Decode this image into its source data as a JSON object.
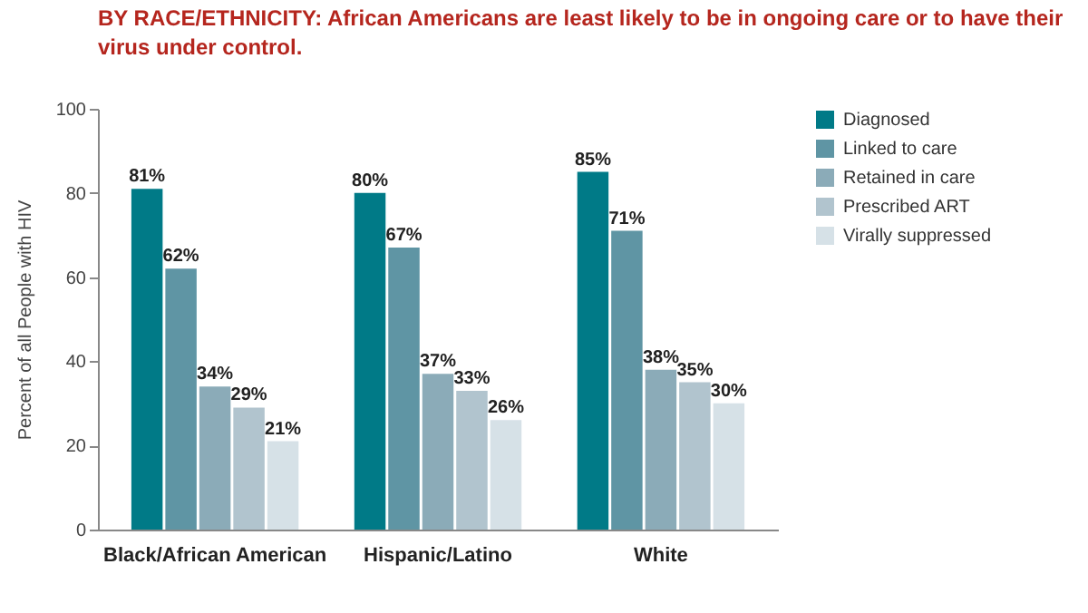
{
  "chart_data": {
    "type": "bar",
    "title": "BY RACE/ETHNICITY: African Americans are least likely to be in ongoing care or to have their virus under control.",
    "ylabel": "Percent of all People with HIV",
    "categories": [
      "Black/African American",
      "Hispanic/Latino",
      "White"
    ],
    "series": [
      {
        "name": "Diagnosed",
        "color": "#007a87",
        "values": [
          81,
          80,
          85
        ],
        "value_labels": [
          "81%",
          "80%",
          "85%"
        ]
      },
      {
        "name": "Linked to care",
        "color": "#5f95a4",
        "values": [
          62,
          67,
          71
        ],
        "value_labels": [
          "62%",
          "67%",
          "71%"
        ]
      },
      {
        "name": "Retained in care",
        "color": "#8babb8",
        "values": [
          34,
          37,
          38
        ],
        "value_labels": [
          "34%",
          "37%",
          "38%"
        ]
      },
      {
        "name": "Prescribed ART",
        "color": "#b1c4ce",
        "values": [
          29,
          33,
          35
        ],
        "value_labels": [
          "29%",
          "33%",
          "35%"
        ]
      },
      {
        "name": "Virally suppressed",
        "color": "#d6e1e7",
        "values": [
          21,
          26,
          30
        ],
        "value_labels": [
          "21%",
          "26%",
          "30%"
        ]
      }
    ],
    "ylim": [
      0,
      100
    ],
    "yticks": [
      0,
      20,
      40,
      60,
      80,
      100
    ],
    "grid": false,
    "legend": "top right"
  }
}
